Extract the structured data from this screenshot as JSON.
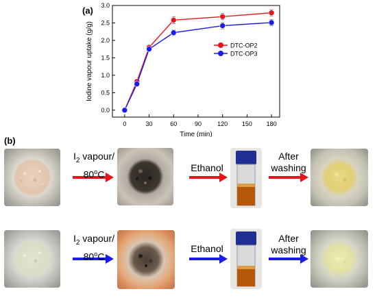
{
  "panel_a_label": "(a)",
  "panel_b_label": "(b)",
  "chart_data": {
    "type": "line",
    "title": "",
    "xlabel": "Time (min)",
    "ylabel": "Iodine vapour uptake (g/g)",
    "x": [
      0,
      15,
      30,
      60,
      120,
      180
    ],
    "xticks": [
      "0",
      "30",
      "60",
      "90",
      "120",
      "150",
      "180"
    ],
    "yticks": [
      "0.0",
      "0.5",
      "1.0",
      "1.5",
      "2.0",
      "2.5",
      "3.0"
    ],
    "xlim": [
      -15,
      190
    ],
    "ylim": [
      -0.2,
      3.0
    ],
    "grid": false,
    "legend_position": "right",
    "series": [
      {
        "name": "DTC-OP2",
        "color": "#e8141c",
        "values": [
          0.0,
          0.82,
          1.8,
          2.58,
          2.68,
          2.79
        ],
        "errors": [
          0.03,
          0.05,
          0.05,
          0.1,
          0.09,
          0.09
        ]
      },
      {
        "name": "DTC-OP3",
        "color": "#1c1ce8",
        "values": [
          0.0,
          0.75,
          1.75,
          2.22,
          2.42,
          2.51
        ],
        "errors": [
          0.03,
          0.05,
          0.05,
          0.08,
          0.09,
          0.09
        ]
      }
    ]
  },
  "process": {
    "step1_line1_pre": "I",
    "step1_line1_sub": "2",
    "step1_line1_post": " vapour/",
    "step1_line2_pre": "80",
    "step1_line2_sup": "o",
    "step1_line2_post": "C",
    "step2": "Ethanol",
    "step3_line1": "After",
    "step3_line2": "washing",
    "row1_arrow_color": "#e8141c",
    "row2_arrow_color": "#1c1ce8"
  }
}
